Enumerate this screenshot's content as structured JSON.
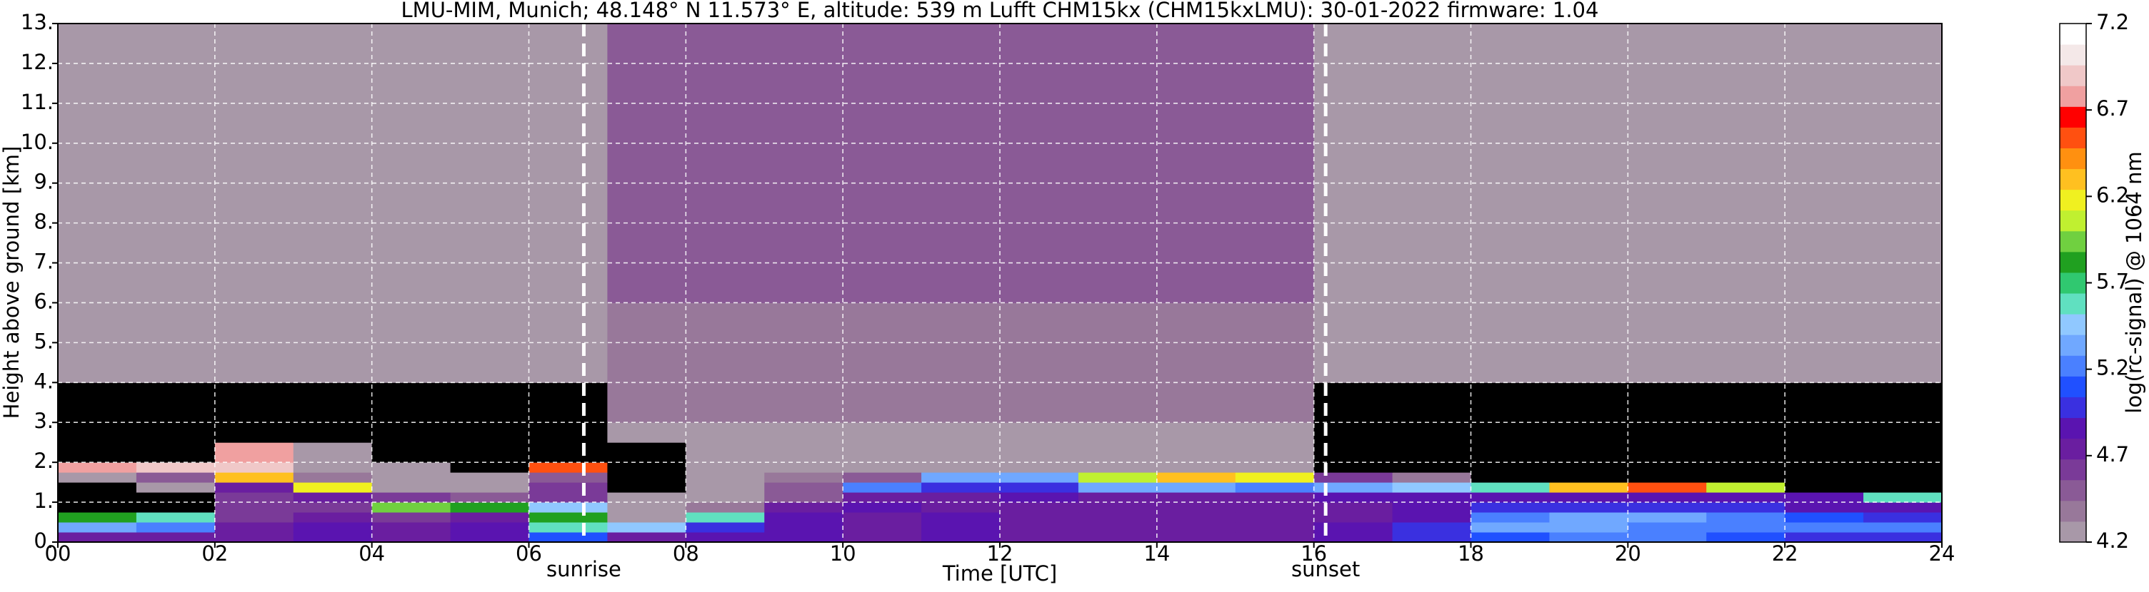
{
  "chart_data": {
    "type": "heatmap",
    "title": "LMU-MIM, Munich; 48.148° N 11.573° E, altitude: 539 m    Lufft CHM15kx (CHM15kxLMU): 30-01-2022    firmware: 1.04",
    "x_label": "Time [UTC]",
    "y_label": "Height above ground [km]",
    "colorbar_label": "log(rc-signal) @ 1064 nm",
    "xlim": [
      0,
      24
    ],
    "ylim": [
      0,
      13
    ],
    "xticks": [
      {
        "value": 0,
        "label": "00"
      },
      {
        "value": 2,
        "label": "02"
      },
      {
        "value": 4,
        "label": "04"
      },
      {
        "value": 6,
        "label": "06"
      },
      {
        "value": 8,
        "label": "08"
      },
      {
        "value": 10,
        "label": "10"
      },
      {
        "value": 12,
        "label": "12"
      },
      {
        "value": 14,
        "label": "14"
      },
      {
        "value": 16,
        "label": "16"
      },
      {
        "value": 18,
        "label": "18"
      },
      {
        "value": 20,
        "label": "20"
      },
      {
        "value": 22,
        "label": "22"
      },
      {
        "value": 24,
        "label": "24"
      }
    ],
    "yticks": [
      {
        "value": 0,
        "label": "0."
      },
      {
        "value": 1,
        "label": "1."
      },
      {
        "value": 2,
        "label": "2."
      },
      {
        "value": 3,
        "label": "3."
      },
      {
        "value": 4,
        "label": "4."
      },
      {
        "value": 5,
        "label": "5."
      },
      {
        "value": 6,
        "label": "6."
      },
      {
        "value": 7,
        "label": "7."
      },
      {
        "value": 8,
        "label": "8."
      },
      {
        "value": 9,
        "label": "9."
      },
      {
        "value": 10,
        "label": "10."
      },
      {
        "value": 11,
        "label": "11."
      },
      {
        "value": 12,
        "label": "12."
      },
      {
        "value": 13,
        "label": "13."
      }
    ],
    "grid": true,
    "clim": [
      4.2,
      7.2
    ],
    "cticks": [
      4.2,
      4.7,
      5.2,
      5.7,
      6.2,
      6.7,
      7.2
    ],
    "under_color": "#000000",
    "colormap": [
      "#a898a8",
      "#98789a",
      "#8a5a96",
      "#7a3a98",
      "#6a1ea0",
      "#5a14b0",
      "#3a30e0",
      "#2050ff",
      "#4a80ff",
      "#70a8ff",
      "#90c8ff",
      "#60e0c0",
      "#30c870",
      "#20a020",
      "#70d040",
      "#c0f030",
      "#f0f020",
      "#ffc020",
      "#ff9010",
      "#ff5010",
      "#ff0000",
      "#f0a0a0",
      "#f0c8c8",
      "#f4e8e8",
      "#ffffff"
    ],
    "x_edges": [
      0,
      1,
      2,
      3,
      4,
      5,
      6,
      7,
      8,
      9,
      10,
      11,
      12,
      13,
      14,
      15,
      16,
      17,
      18,
      19,
      20,
      21,
      22,
      23,
      24
    ],
    "y_edges": [
      0,
      0.25,
      0.5,
      0.75,
      1,
      1.25,
      1.5,
      1.75,
      2,
      2.5,
      3,
      4,
      6,
      9,
      13
    ],
    "z": [
      [
        4.7,
        4.7,
        4.8,
        4.9,
        4.8,
        4.9,
        5.1,
        4.8,
        4.9,
        4.9,
        4.8,
        4.9,
        4.8,
        4.8,
        4.8,
        4.8,
        4.9,
        5.0,
        5.1,
        5.2,
        5.2,
        5.1,
        5.0,
        5.0
      ],
      [
        5.3,
        5.2,
        4.7,
        4.9,
        4.8,
        4.9,
        5.6,
        5.4,
        5.0,
        4.9,
        4.8,
        4.9,
        4.8,
        4.8,
        4.8,
        4.8,
        4.9,
        5.0,
        5.3,
        5.3,
        5.2,
        5.2,
        5.2,
        5.2
      ],
      [
        5.8,
        5.6,
        4.6,
        4.7,
        4.6,
        4.7,
        5.8,
        4.3,
        5.6,
        4.9,
        4.8,
        4.9,
        4.8,
        4.8,
        4.8,
        4.8,
        4.8,
        4.9,
        5.2,
        5.3,
        5.3,
        5.2,
        5.1,
        5.0
      ],
      [
        4.0,
        4.0,
        4.6,
        4.6,
        5.9,
        5.8,
        5.4,
        4.2,
        4.4,
        4.8,
        4.9,
        4.8,
        4.8,
        4.8,
        4.8,
        4.8,
        4.8,
        4.9,
        5.0,
        5.0,
        5.0,
        5.0,
        4.9,
        4.9
      ],
      [
        4.0,
        4.1,
        4.6,
        4.7,
        4.6,
        4.5,
        4.6,
        4.2,
        4.3,
        4.5,
        4.8,
        4.8,
        4.9,
        4.8,
        4.8,
        4.8,
        4.9,
        4.9,
        4.9,
        4.9,
        4.9,
        4.9,
        4.9,
        5.6
      ],
      [
        4.1,
        4.3,
        4.7,
        6.2,
        4.3,
        4.3,
        4.6,
        4.1,
        4.3,
        4.5,
        5.2,
        5.0,
        5.0,
        5.3,
        5.3,
        5.2,
        5.3,
        5.5,
        5.6,
        6.3,
        6.5,
        6.0,
        4.1,
        4.0
      ],
      [
        4.2,
        4.5,
        6.3,
        4.4,
        4.2,
        4.2,
        4.5,
        4.1,
        4.2,
        4.4,
        4.5,
        5.3,
        5.3,
        6.0,
        6.3,
        6.2,
        4.6,
        4.4,
        4.1,
        4.0,
        4.0,
        4.0,
        4.0,
        4.0
      ],
      [
        6.8,
        6.9,
        6.9,
        4.3,
        4.2,
        4.1,
        6.5,
        4.1,
        4.2,
        4.3,
        4.3,
        4.3,
        4.3,
        4.3,
        4.3,
        4.2,
        4.1,
        4.0,
        4.0,
        4.0,
        4.0,
        4.0,
        4.0,
        4.0
      ],
      [
        4.0,
        4.1,
        6.8,
        4.2,
        4.1,
        4.0,
        4.0,
        4.1,
        4.2,
        4.3,
        4.3,
        4.3,
        4.3,
        4.3,
        4.3,
        4.2,
        4.1,
        4.0,
        4.0,
        4.0,
        4.0,
        4.0,
        4.0,
        4.0
      ],
      [
        4.0,
        4.0,
        4.0,
        4.0,
        4.0,
        4.0,
        4.0,
        4.3,
        4.3,
        4.3,
        4.3,
        4.3,
        4.3,
        4.3,
        4.3,
        4.3,
        4.0,
        4.0,
        4.0,
        4.0,
        4.0,
        4.0,
        4.0,
        4.0
      ],
      [
        4.1,
        4.1,
        4.1,
        4.1,
        4.1,
        4.1,
        4.1,
        4.35,
        4.35,
        4.35,
        4.35,
        4.35,
        4.35,
        4.35,
        4.35,
        4.35,
        4.1,
        4.1,
        4.1,
        4.1,
        4.1,
        4.1,
        4.1,
        4.1
      ],
      [
        4.2,
        4.2,
        4.2,
        4.2,
        4.2,
        4.2,
        4.2,
        4.4,
        4.4,
        4.4,
        4.4,
        4.4,
        4.4,
        4.4,
        4.4,
        4.4,
        4.2,
        4.2,
        4.2,
        4.2,
        4.2,
        4.2,
        4.2,
        4.2
      ],
      [
        4.25,
        4.25,
        4.25,
        4.25,
        4.25,
        4.25,
        4.25,
        4.45,
        4.45,
        4.45,
        4.45,
        4.45,
        4.45,
        4.45,
        4.45,
        4.45,
        4.25,
        4.25,
        4.25,
        4.25,
        4.25,
        4.25,
        4.25,
        4.25
      ],
      [
        4.25,
        4.25,
        4.25,
        4.25,
        4.25,
        4.25,
        4.25,
        4.45,
        4.45,
        4.45,
        4.45,
        4.45,
        4.45,
        4.45,
        4.45,
        4.45,
        4.25,
        4.25,
        4.25,
        4.25,
        4.25,
        4.25,
        4.25,
        4.25
      ]
    ],
    "annotations": [
      {
        "text": "sunrise",
        "x": 6.7
      },
      {
        "text": "sunset",
        "x": 16.15
      }
    ]
  }
}
